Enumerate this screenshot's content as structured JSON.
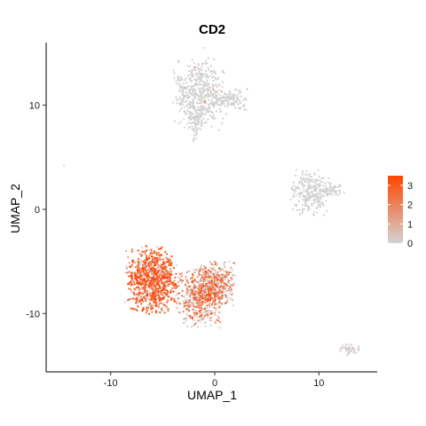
{
  "chart_data": {
    "type": "scatter",
    "title": "CD2",
    "xlabel": "UMAP_1",
    "ylabel": "UMAP_2",
    "xlim": [
      -16.2,
      15.6
    ],
    "ylim": [
      -15.6,
      16.0
    ],
    "x_ticks": [
      -10,
      0,
      10
    ],
    "y_ticks": [
      -10,
      0,
      10
    ],
    "x_tick_labels": [
      "-10",
      "0",
      "10"
    ],
    "y_tick_labels": [
      "-10",
      "0",
      "10"
    ],
    "grid": false,
    "legend": {
      "placement": "right",
      "type": "colorbar",
      "min": 0,
      "max": 3.5,
      "ticks": [
        0,
        1,
        2,
        3
      ],
      "tick_labels": [
        "0",
        "1",
        "2",
        "3"
      ],
      "low_color": "#d3d3d3",
      "high_color": "#ff4500"
    },
    "clusters": [
      {
        "id": "top",
        "center": [
          -1.5,
          11
        ],
        "spread": [
          1.2,
          1.6
        ],
        "n": 500,
        "expr_mean": 0.05,
        "expr_frac": 0.04
      },
      {
        "id": "top-extension",
        "center": [
          1.5,
          10.5
        ],
        "spread": [
          0.8,
          0.5
        ],
        "n": 120,
        "expr_mean": 0.05,
        "expr_frac": 0.03
      },
      {
        "id": "top-tail",
        "center": [
          -1.8,
          8.3
        ],
        "spread": [
          0.3,
          0.9
        ],
        "n": 60,
        "expr_mean": 0.05,
        "expr_frac": 0.03
      },
      {
        "id": "right",
        "center": [
          9.2,
          1.6
        ],
        "spread": [
          0.9,
          1.0
        ],
        "n": 260,
        "expr_mean": 0.0,
        "expr_frac": 0.0
      },
      {
        "id": "right-arm",
        "center": [
          11.2,
          1.8
        ],
        "spread": [
          0.6,
          0.4
        ],
        "n": 60,
        "expr_mean": 0.0,
        "expr_frac": 0.0
      },
      {
        "id": "bottom-left",
        "center": [
          -6,
          -6.8
        ],
        "spread": [
          1.2,
          1.5
        ],
        "n": 900,
        "expr_mean": 2.5,
        "expr_frac": 0.85
      },
      {
        "id": "bottom-mid",
        "center": [
          -1.5,
          -8.5
        ],
        "spread": [
          1.0,
          1.3
        ],
        "n": 500,
        "expr_mean": 1.8,
        "expr_frac": 0.6
      },
      {
        "id": "bottom-right",
        "center": [
          0,
          -7.2
        ],
        "spread": [
          0.9,
          1.0
        ],
        "n": 450,
        "expr_mean": 1.8,
        "expr_frac": 0.55
      },
      {
        "id": "small-lower-right",
        "center": [
          12.8,
          -13.5
        ],
        "spread": [
          0.5,
          0.25
        ],
        "n": 45,
        "expr_mean": 0.3,
        "expr_frac": 0.2
      }
    ],
    "outliers": [
      [
        -14.5,
        4.2
      ],
      [
        -1.0,
        15.5
      ],
      [
        -8.5,
        -5.5
      ]
    ]
  }
}
